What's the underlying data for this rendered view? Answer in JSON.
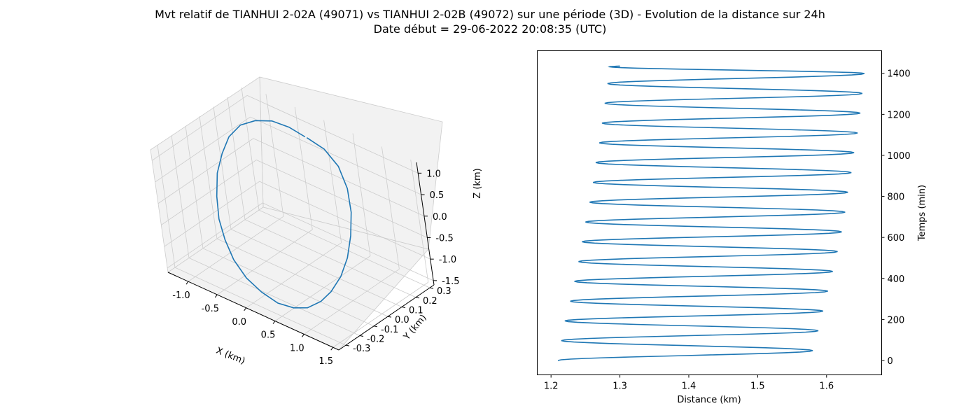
{
  "figure": {
    "title_line1": "Mvt relatif de TIANHUI 2-02A (49071) vs TIANHUI 2-02B (49072) sur une période (3D) - Evolution de la distance sur 24h",
    "title_line2": "Date début = 29-06-2022 20:08:35 (UTC)"
  },
  "colors": {
    "line": "#1f77b4",
    "pane": "#f2f2f2",
    "grid": "#cccccc",
    "axis": "#000000"
  },
  "chart_data": [
    {
      "type": "line",
      "projection": "3d",
      "title": "",
      "xlabel": "X (km)",
      "ylabel": "Y (km)",
      "zlabel": "Z (km)",
      "xlim": [
        -1.35,
        1.6
      ],
      "ylim": [
        -0.35,
        0.33
      ],
      "zlim": [
        -1.6,
        1.25
      ],
      "xticks": [
        "-1.0",
        "-0.5",
        "0.0",
        "0.5",
        "1.0",
        "1.5"
      ],
      "yticks": [
        "-0.3",
        "-0.2",
        "-0.1",
        "0.0",
        "0.1",
        "0.2",
        "0.3"
      ],
      "zticks": [
        "-1.5",
        "-1.0",
        "-0.5",
        "0.0",
        "0.5",
        "1.0"
      ],
      "grid": true,
      "series": [
        {
          "x": [
            -0.02,
            0.3,
            0.6,
            0.85,
            1.0,
            1.1,
            1.15,
            1.15,
            1.1,
            1.0,
            0.85,
            0.65,
            0.4,
            0.1,
            -0.2,
            -0.5,
            -0.75,
            -0.95,
            -1.1,
            -1.2,
            -1.23,
            -1.2,
            -1.1,
            -0.9,
            -0.65,
            -0.35,
            -0.05
          ],
          "y": [
            0.21,
            0.2,
            0.17,
            0.12,
            0.07,
            0.01,
            -0.05,
            -0.11,
            -0.17,
            -0.21,
            -0.25,
            -0.27,
            -0.28,
            -0.27,
            -0.25,
            -0.21,
            -0.16,
            -0.11,
            -0.05,
            0.01,
            0.07,
            0.12,
            0.17,
            0.2,
            0.22,
            0.22,
            0.21
          ],
          "z": [
            1.1,
            1.05,
            0.9,
            0.65,
            0.3,
            -0.05,
            -0.4,
            -0.7,
            -0.95,
            -1.15,
            -1.3,
            -1.38,
            -1.4,
            -1.35,
            -1.25,
            -1.1,
            -0.9,
            -0.65,
            -0.35,
            0.0,
            0.3,
            0.6,
            0.82,
            0.98,
            1.08,
            1.12,
            1.1
          ]
        }
      ]
    },
    {
      "type": "line",
      "title": "",
      "xlabel": "Distance (km)",
      "ylabel": "Temps (min)",
      "xlim": [
        1.18,
        1.68
      ],
      "ylim": [
        -70,
        1510
      ],
      "xticks": [
        1.2,
        1.3,
        1.4,
        1.5,
        1.6
      ],
      "yticks": [
        0,
        200,
        400,
        600,
        800,
        1000,
        1200,
        1400
      ],
      "grid": false,
      "series": [
        {
          "period_min": 96.5,
          "time_range": [
            0,
            1440
          ],
          "points": [
            [
              1.21,
              0
            ],
            [
              1.58,
              48
            ],
            [
              1.215,
              97
            ],
            [
              1.588,
              145
            ],
            [
              1.22,
              193
            ],
            [
              1.595,
              241
            ],
            [
              1.228,
              289
            ],
            [
              1.602,
              338
            ],
            [
              1.234,
              386
            ],
            [
              1.609,
              434
            ],
            [
              1.24,
              482
            ],
            [
              1.616,
              531
            ],
            [
              1.245,
              579
            ],
            [
              1.622,
              627
            ],
            [
              1.25,
              675
            ],
            [
              1.627,
              723
            ],
            [
              1.256,
              772
            ],
            [
              1.631,
              820
            ],
            [
              1.261,
              868
            ],
            [
              1.636,
              916
            ],
            [
              1.265,
              965
            ],
            [
              1.64,
              1013
            ],
            [
              1.27,
              1061
            ],
            [
              1.645,
              1109
            ],
            [
              1.274,
              1157
            ],
            [
              1.649,
              1206
            ],
            [
              1.278,
              1254
            ],
            [
              1.652,
              1302
            ],
            [
              1.282,
              1350
            ],
            [
              1.655,
              1399
            ],
            [
              1.285,
              1432
            ],
            [
              1.3,
              1436
            ]
          ]
        }
      ]
    }
  ]
}
